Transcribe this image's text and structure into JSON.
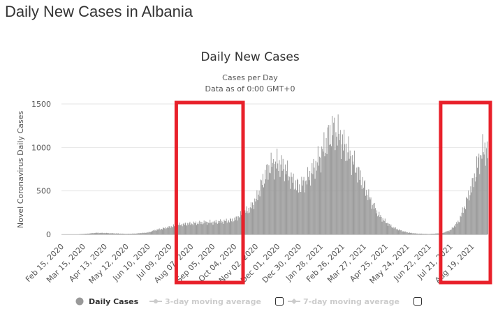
{
  "page": {
    "title": "Daily New Cases in Albania"
  },
  "chart_data": {
    "type": "bar",
    "title": "Daily New Cases",
    "subtitle_lines": [
      "Cases per Day",
      "Data as of 0:00 GMT+0"
    ],
    "ylabel": "Novel Coronavirus Daily Cases",
    "xlabel": "",
    "ylim": [
      0,
      1500
    ],
    "yticks": [
      0,
      500,
      1000,
      1500
    ],
    "grid": true,
    "x_start": "Feb 15, 2020",
    "x_end": "Sep 09, 2021",
    "xtick_labels": [
      "Feb 15, 2020",
      "Mar 15, 2020",
      "Apr 13, 2020",
      "May 12, 2020",
      "Jun 10, 2020",
      "Jul 09, 2020",
      "Aug 07, 2020",
      "Sep 05, 2020",
      "Oct 04, 2020",
      "Nov 02, 2020",
      "Dec 01, 2020",
      "Dec 30, 2020",
      "Jan 28, 2021",
      "Feb 26, 2021",
      "Mar 27, 2021",
      "Apr 25, 2021",
      "May 24, 2021",
      "Jun 22, 2021",
      "Jul 21, 2021",
      "Aug 19, 2021"
    ],
    "series": [
      {
        "name": "Daily Cases",
        "color": "#999999",
        "points": [
          [
            "Mar 09, 2020",
            2
          ],
          [
            "Mar 20, 2020",
            8
          ],
          [
            "Apr 01, 2020",
            18
          ],
          [
            "Apr 13, 2020",
            16
          ],
          [
            "May 01, 2020",
            10
          ],
          [
            "May 12, 2020",
            6
          ],
          [
            "May 25, 2020",
            10
          ],
          [
            "Jun 10, 2020",
            22
          ],
          [
            "Jun 20, 2020",
            50
          ],
          [
            "Jul 01, 2020",
            70
          ],
          [
            "Jul 09, 2020",
            85
          ],
          [
            "Jul 20, 2020",
            110
          ],
          [
            "Aug 01, 2020",
            120
          ],
          [
            "Aug 07, 2020",
            125
          ],
          [
            "Aug 20, 2020",
            135
          ],
          [
            "Sep 05, 2020",
            140
          ],
          [
            "Sep 20, 2020",
            150
          ],
          [
            "Oct 04, 2020",
            170
          ],
          [
            "Oct 15, 2020",
            240
          ],
          [
            "Oct 25, 2020",
            300
          ],
          [
            "Nov 02, 2020",
            400
          ],
          [
            "Nov 10, 2020",
            600
          ],
          [
            "Nov 20, 2020",
            780
          ],
          [
            "Dec 01, 2020",
            820
          ],
          [
            "Dec 10, 2020",
            760
          ],
          [
            "Dec 20, 2020",
            620
          ],
          [
            "Dec 30, 2020",
            540
          ],
          [
            "Jan 10, 2021",
            640
          ],
          [
            "Jan 20, 2021",
            780
          ],
          [
            "Jan 28, 2021",
            900
          ],
          [
            "Feb 05, 2021",
            1080
          ],
          [
            "Feb 12, 2021",
            1200
          ],
          [
            "Feb 20, 2021",
            1150
          ],
          [
            "Feb 26, 2021",
            1050
          ],
          [
            "Mar 05, 2021",
            960
          ],
          [
            "Mar 15, 2021",
            780
          ],
          [
            "Mar 27, 2021",
            560
          ],
          [
            "Apr 05, 2021",
            380
          ],
          [
            "Apr 15, 2021",
            230
          ],
          [
            "Apr 25, 2021",
            140
          ],
          [
            "May 05, 2021",
            80
          ],
          [
            "May 15, 2021",
            45
          ],
          [
            "May 24, 2021",
            22
          ],
          [
            "Jun 05, 2021",
            10
          ],
          [
            "Jun 22, 2021",
            4
          ],
          [
            "Jul 10, 2021",
            15
          ],
          [
            "Jul 21, 2021",
            50
          ],
          [
            "Aug 01, 2021",
            150
          ],
          [
            "Aug 10, 2021",
            350
          ],
          [
            "Aug 19, 2021",
            560
          ],
          [
            "Aug 28, 2021",
            860
          ],
          [
            "Sep 05, 2021",
            1000
          ],
          [
            "Sep 09, 2021",
            930
          ]
        ]
      }
    ],
    "legend": [
      {
        "label": "Daily Cases",
        "active": true
      },
      {
        "label": "3-day moving average",
        "active": false
      },
      {
        "label": "7-day moving average",
        "active": false
      }
    ],
    "highlight_boxes": [
      {
        "from": "Jul 20, 2020",
        "to": "Oct 12, 2020"
      },
      {
        "from": "Jul 10, 2021",
        "to": "Sep 09, 2021"
      }
    ],
    "highlight_color": "#e8202a"
  }
}
